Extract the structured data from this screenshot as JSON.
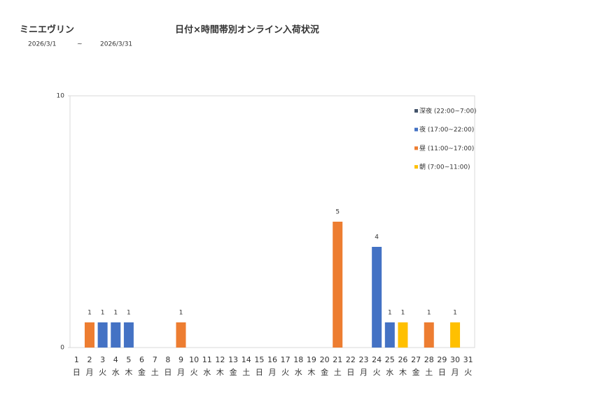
{
  "chart_data": {
    "type": "stacked-bar",
    "store": "ミニエヴリン",
    "title": "日付×時間帯別オンライン入荷状況",
    "date_from": "2026/3/1",
    "date_sep": "~",
    "date_to": "2026/3/31",
    "categories": [
      "1",
      "2",
      "3",
      "4",
      "5",
      "6",
      "7",
      "8",
      "9",
      "10",
      "11",
      "12",
      "13",
      "14",
      "15",
      "16",
      "17",
      "18",
      "19",
      "20",
      "21",
      "22",
      "23",
      "24",
      "25",
      "26",
      "27",
      "28",
      "29",
      "30",
      "31"
    ],
    "weekdays": [
      "日",
      "月",
      "火",
      "水",
      "木",
      "金",
      "土",
      "日",
      "月",
      "火",
      "水",
      "木",
      "金",
      "土",
      "日",
      "月",
      "火",
      "水",
      "木",
      "金",
      "土",
      "日",
      "月",
      "火",
      "水",
      "木",
      "金",
      "土",
      "日",
      "月",
      "火"
    ],
    "series": [
      {
        "name": "深夜 (22:00~7:00)",
        "color": "#44546a",
        "values": [
          0,
          0,
          0,
          0,
          0,
          0,
          0,
          0,
          0,
          0,
          0,
          0,
          0,
          0,
          0,
          0,
          0,
          0,
          0,
          0,
          0,
          0,
          0,
          0,
          0,
          0,
          0,
          0,
          0,
          0,
          0
        ]
      },
      {
        "name": "夜 (17:00~22:00)",
        "color": "#4472c4",
        "values": [
          0,
          0,
          1,
          1,
          1,
          0,
          0,
          0,
          0,
          0,
          0,
          0,
          0,
          0,
          0,
          0,
          0,
          0,
          0,
          0,
          0,
          0,
          0,
          4,
          1,
          0,
          0,
          0,
          0,
          0,
          0
        ]
      },
      {
        "name": "昼 (11:00~17:00)",
        "color": "#ed7d31",
        "values": [
          0,
          1,
          0,
          0,
          0,
          0,
          0,
          0,
          1,
          0,
          0,
          0,
          0,
          0,
          0,
          0,
          0,
          0,
          0,
          0,
          5,
          0,
          0,
          0,
          0,
          0,
          0,
          1,
          0,
          0,
          0
        ]
      },
      {
        "name": "朝 (7:00~11:00)",
        "color": "#ffc000",
        "values": [
          0,
          0,
          0,
          0,
          0,
          0,
          0,
          0,
          0,
          0,
          0,
          0,
          0,
          0,
          0,
          0,
          0,
          0,
          0,
          0,
          0,
          0,
          0,
          0,
          0,
          1,
          0,
          0,
          0,
          1,
          0
        ]
      }
    ],
    "ylim": [
      0,
      10
    ],
    "yticks": [
      0,
      10
    ],
    "legend": "top-right"
  }
}
